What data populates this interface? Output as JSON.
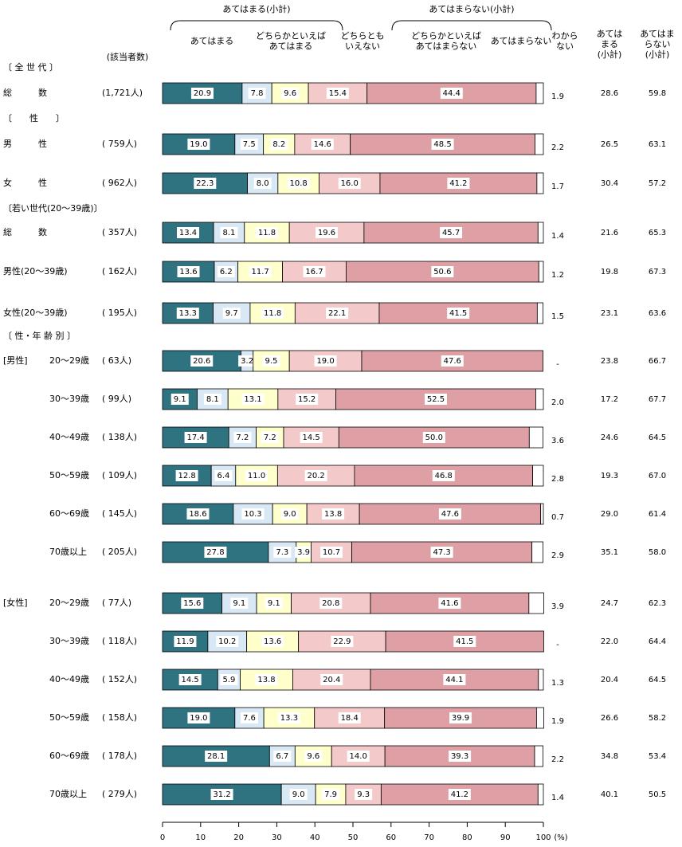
{
  "chart_data": {
    "type": "stacked-barh",
    "sample_size_header": "(該当者数)",
    "xlabel": "(%)",
    "xlim": [
      0,
      100
    ],
    "xticks": [
      0,
      10,
      20,
      30,
      40,
      50,
      60,
      70,
      80,
      90,
      100
    ],
    "bracket_labels": [
      "あてはまる(小計)",
      "あてはまらない(小計)"
    ],
    "section_headers": [
      "〔 全 世 代 〕",
      "〔　　性　　〕",
      null,
      "〔若い世代(20～39歳)〕",
      null,
      null,
      "〔 性・年 齢 別 〕",
      null,
      null,
      null,
      null,
      null,
      null,
      null,
      null,
      null,
      null,
      null
    ],
    "group_labels": [
      null,
      null,
      null,
      null,
      null,
      null,
      "[男性]",
      null,
      null,
      null,
      null,
      null,
      "[女性]",
      null,
      null,
      null,
      null,
      null
    ],
    "categories": [
      "総　　　数",
      "男　　　性",
      "女　　　性",
      "総　　　数",
      "男性(20～39歳)",
      "女性(20～39歳)",
      "20～29歳",
      "30～39歳",
      "40～49歳",
      "50～59歳",
      "60～69歳",
      "70歳以上",
      "20～29歳",
      "30～39歳",
      "40～49歳",
      "50～59歳",
      "60～69歳",
      "70歳以上"
    ],
    "sample_sizes": [
      "(1,721人)",
      "( 759人)",
      "( 962人)",
      "( 357人)",
      "( 162人)",
      "( 195人)",
      "(  63人)",
      "(  99人)",
      "( 138人)",
      "( 109人)",
      "( 145人)",
      "( 205人)",
      "(  77人)",
      "( 118人)",
      "( 152人)",
      "( 158人)",
      "( 178人)",
      "( 279人)"
    ],
    "series": [
      {
        "name": "あてはまる",
        "color": "#2f7380",
        "values": [
          20.9,
          19.0,
          22.3,
          13.4,
          13.6,
          13.3,
          20.6,
          9.1,
          17.4,
          12.8,
          18.6,
          27.8,
          15.6,
          11.9,
          14.5,
          19.0,
          28.1,
          31.2
        ],
        "value_labels": [
          "20.9",
          "19.0",
          "22.3",
          "13.4",
          "13.6",
          "13.3",
          "20.6",
          "9.1",
          "17.4",
          "12.8",
          "18.6",
          "27.8",
          "15.6",
          "11.9",
          "14.5",
          "19.0",
          "28.1",
          "31.2"
        ]
      },
      {
        "name": "どちらかといえば\nあてはまる",
        "color": "#d8e8f4",
        "values": [
          7.8,
          7.5,
          8.0,
          8.1,
          6.2,
          9.7,
          3.2,
          8.1,
          7.2,
          6.4,
          10.3,
          7.3,
          9.1,
          10.2,
          5.9,
          7.6,
          6.7,
          9.0
        ],
        "value_labels": [
          "7.8",
          "7.5",
          "8.0",
          "8.1",
          "6.2",
          "9.7",
          "3.2",
          "8.1",
          "7.2",
          "6.4",
          "10.3",
          "7.3",
          "9.1",
          "10.2",
          "5.9",
          "7.6",
          "6.7",
          "9.0"
        ]
      },
      {
        "name": "どちらとも\nいえない",
        "color": "#ffffcc",
        "values": [
          9.6,
          8.2,
          10.8,
          11.8,
          11.7,
          11.8,
          9.5,
          13.1,
          7.2,
          11.0,
          9.0,
          3.9,
          9.1,
          13.6,
          13.8,
          13.3,
          9.6,
          7.9
        ],
        "value_labels": [
          "9.6",
          "8.2",
          "10.8",
          "11.8",
          "11.7",
          "11.8",
          "9.5",
          "13.1",
          "7.2",
          "11.0",
          "9.0",
          "3.9",
          "9.1",
          "13.6",
          "13.8",
          "13.3",
          "9.6",
          "7.9"
        ]
      },
      {
        "name": "どちらかといえば\nあてはまらない",
        "color": "#f3c9c9",
        "values": [
          15.4,
          14.6,
          16.0,
          19.6,
          16.7,
          22.1,
          19.0,
          15.2,
          14.5,
          20.2,
          13.8,
          10.7,
          20.8,
          22.9,
          20.4,
          18.4,
          14.0,
          9.3
        ],
        "value_labels": [
          "15.4",
          "14.6",
          "16.0",
          "19.6",
          "16.7",
          "22.1",
          "19.0",
          "15.2",
          "14.5",
          "20.2",
          "13.8",
          "10.7",
          "20.8",
          "22.9",
          "20.4",
          "18.4",
          "14.0",
          "9.3"
        ]
      },
      {
        "name": "あてはまらない",
        "color": "#dea0a4",
        "values": [
          44.4,
          48.5,
          41.2,
          45.7,
          50.6,
          41.5,
          47.6,
          52.5,
          50.0,
          46.8,
          47.6,
          47.3,
          41.6,
          41.5,
          44.1,
          39.9,
          39.3,
          41.2
        ],
        "value_labels": [
          "44.4",
          "48.5",
          "41.2",
          "45.7",
          "50.6",
          "41.5",
          "47.6",
          "52.5",
          "50.0",
          "46.8",
          "47.6",
          "47.3",
          "41.6",
          "41.5",
          "44.1",
          "39.9",
          "39.3",
          "41.2"
        ]
      },
      {
        "name": "わから\nない",
        "color": "#ffffff",
        "values": [
          1.9,
          2.2,
          1.7,
          1.4,
          1.2,
          1.5,
          null,
          2.0,
          3.6,
          2.8,
          0.7,
          2.9,
          3.9,
          null,
          1.3,
          1.9,
          2.2,
          1.4
        ],
        "value_labels": [
          "1.9",
          "2.2",
          "1.7",
          "1.4",
          "1.2",
          "1.5",
          "-",
          "2.0",
          "3.6",
          "2.8",
          "0.7",
          "2.9",
          "3.9",
          "-",
          "1.3",
          "1.9",
          "2.2",
          "1.4"
        ]
      }
    ],
    "subtotal_series": [
      {
        "name": "あては\nまる\n(小計)",
        "values": [
          28.6,
          26.5,
          30.4,
          21.6,
          19.8,
          23.1,
          23.8,
          17.2,
          24.6,
          19.3,
          29.0,
          35.1,
          24.7,
          22.0,
          20.4,
          26.6,
          34.8,
          40.1
        ],
        "value_labels": [
          "28.6",
          "26.5",
          "30.4",
          "21.6",
          "19.8",
          "23.1",
          "23.8",
          "17.2",
          "24.6",
          "19.3",
          "29.0",
          "35.1",
          "24.7",
          "22.0",
          "20.4",
          "26.6",
          "34.8",
          "40.1"
        ]
      },
      {
        "name": "あてはま\nらない\n(小計)",
        "values": [
          59.8,
          63.1,
          57.2,
          65.3,
          67.3,
          63.6,
          66.7,
          67.7,
          64.5,
          67.0,
          61.4,
          58.0,
          62.3,
          64.4,
          64.5,
          58.2,
          53.4,
          50.5
        ],
        "value_labels": [
          "59.8",
          "63.1",
          "57.2",
          "65.3",
          "67.3",
          "63.6",
          "66.7",
          "67.7",
          "64.5",
          "67.0",
          "61.4",
          "58.0",
          "62.3",
          "64.4",
          "64.5",
          "58.2",
          "53.4",
          "50.5"
        ]
      }
    ]
  }
}
